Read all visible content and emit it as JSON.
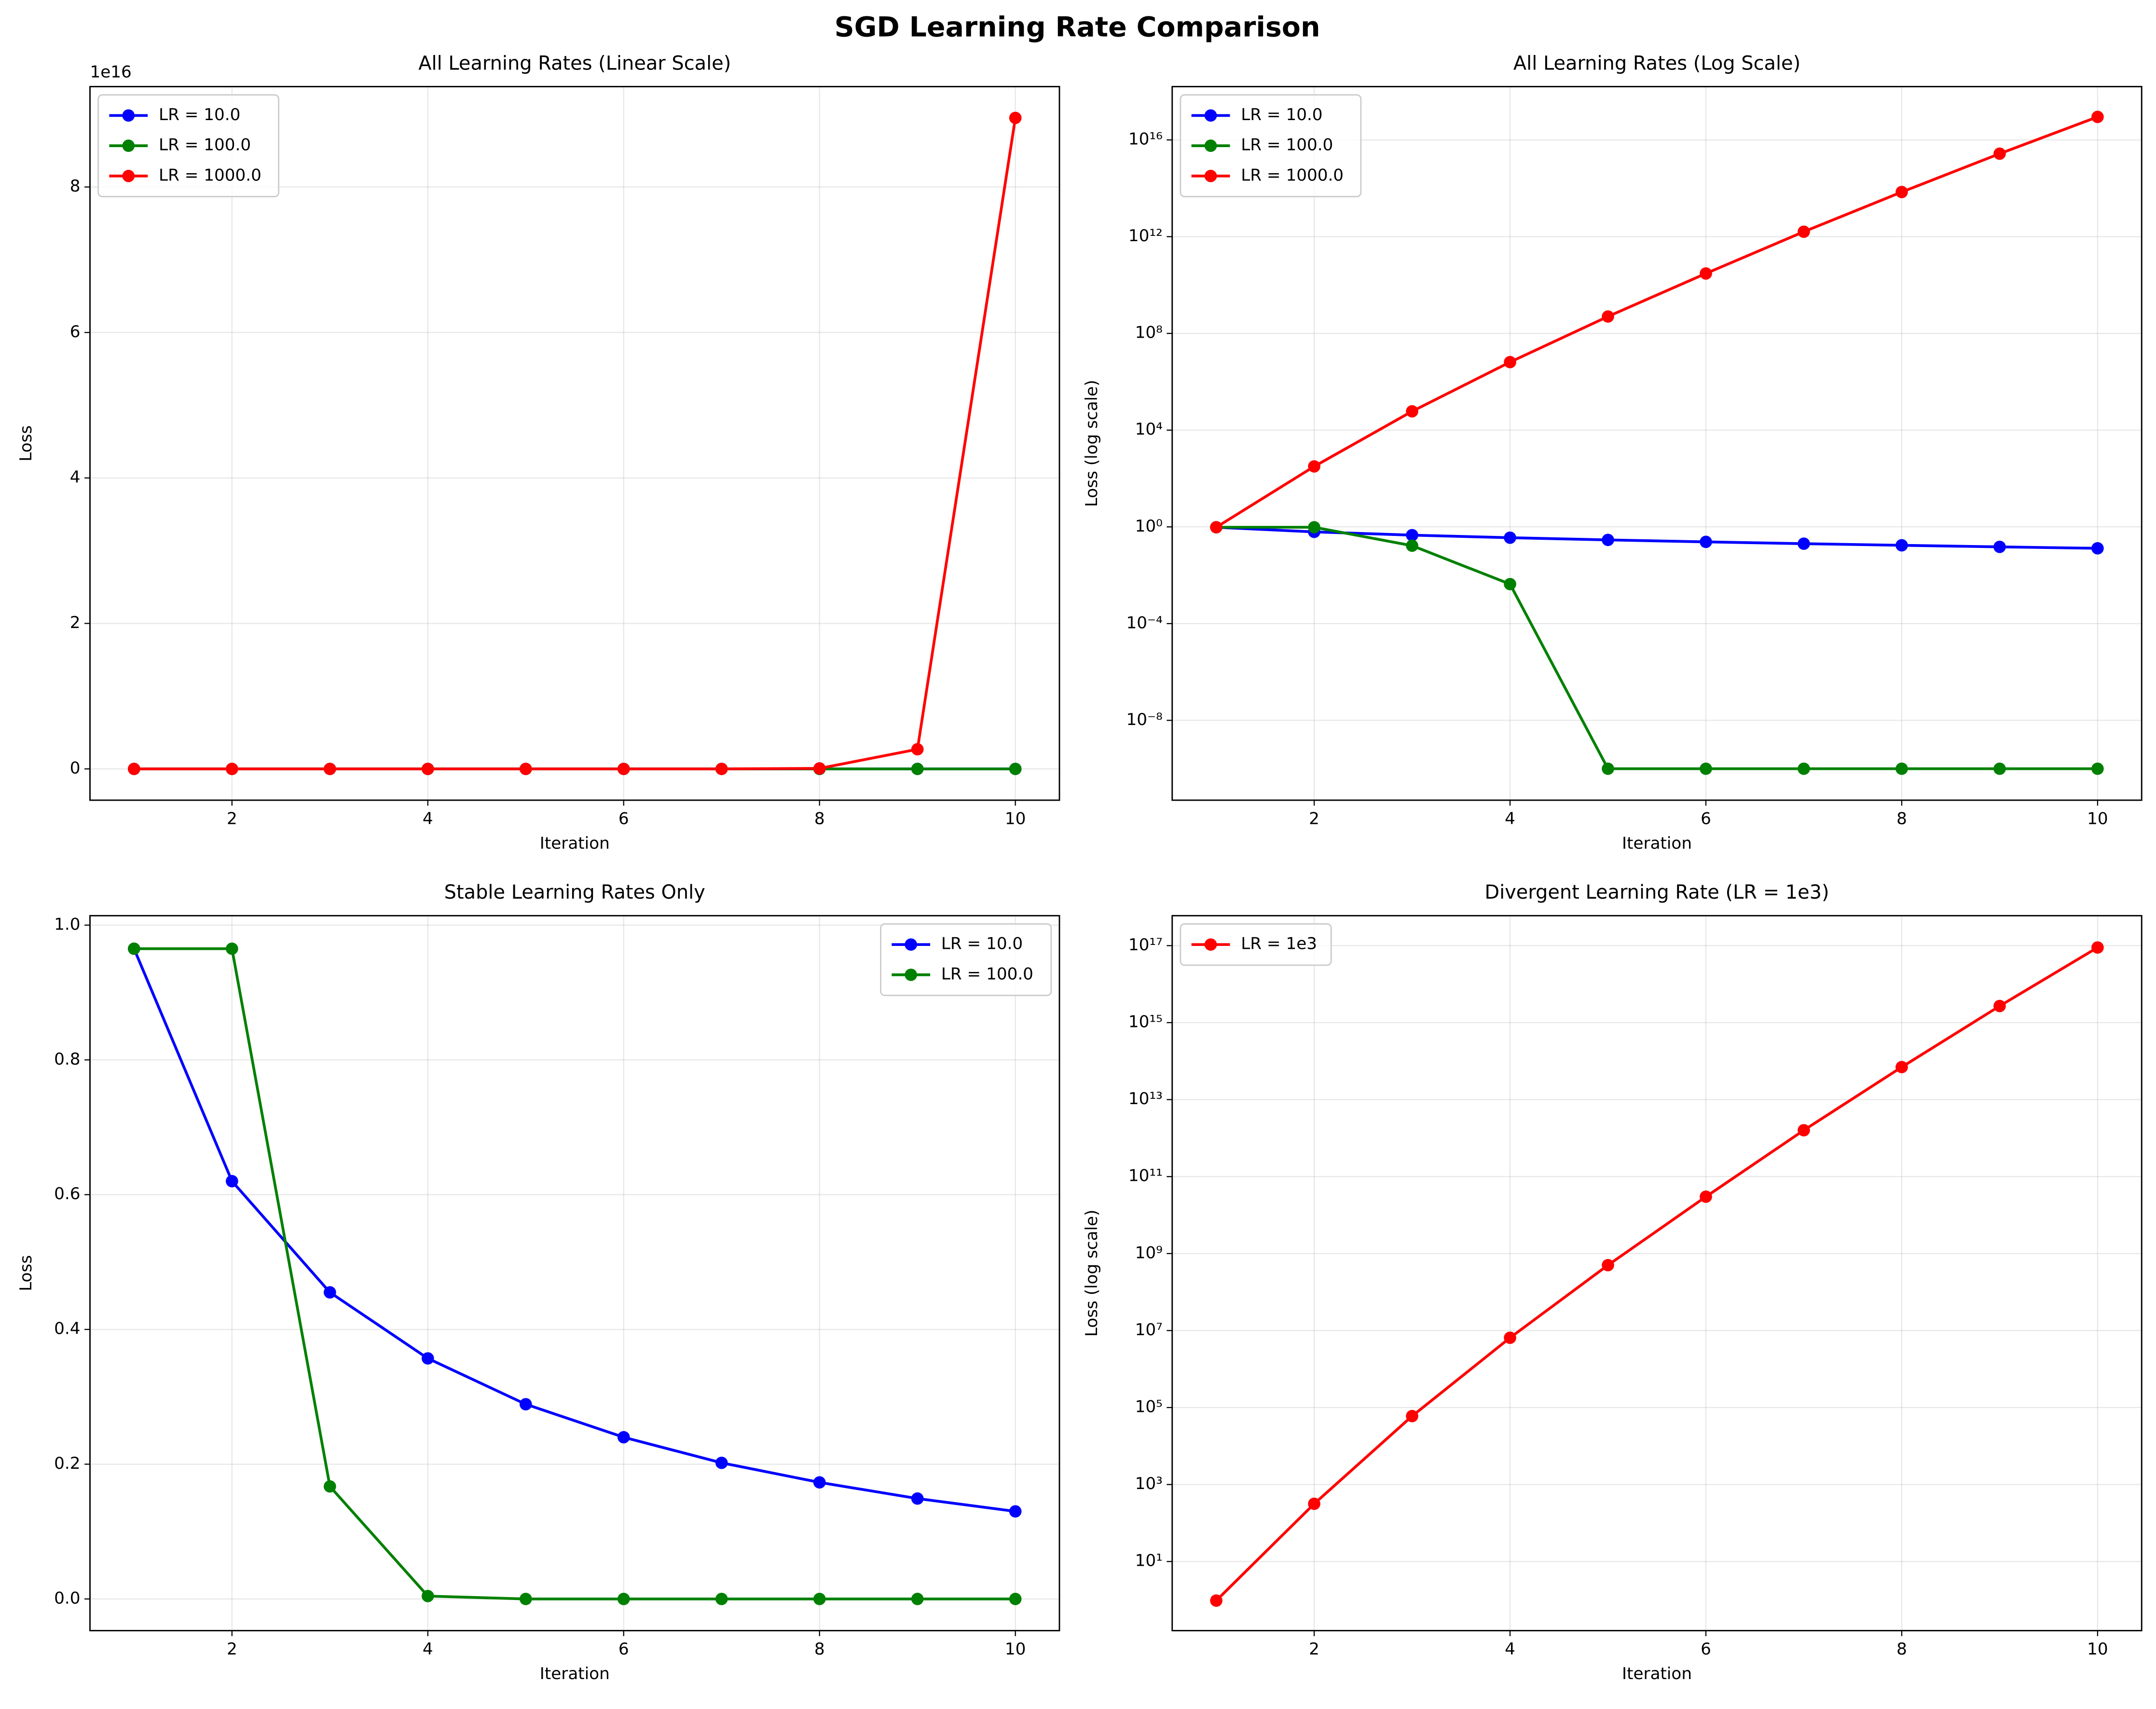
{
  "title": "SGD Learning Rate Comparison",
  "chart_data": [
    {
      "type": "line",
      "title": "All Learning Rates (Linear Scale)",
      "xlabel": "Iteration",
      "ylabel": "Loss",
      "y_offset_label": "1e16",
      "grid": true,
      "legend": "upper left",
      "x": [
        1,
        2,
        3,
        4,
        5,
        6,
        7,
        8,
        9,
        10
      ],
      "xlim": [
        0.55,
        10.45
      ],
      "xticks": [
        2,
        4,
        6,
        8,
        10
      ],
      "ylim": [
        -4300000000000000.0,
        9.38e+16
      ],
      "yticks": [
        {
          "value": 0,
          "label": "0"
        },
        {
          "value": 2e+16,
          "label": "2"
        },
        {
          "value": 4e+16,
          "label": "4"
        },
        {
          "value": 6e+16,
          "label": "6"
        },
        {
          "value": 8e+16,
          "label": "8"
        }
      ],
      "series": [
        {
          "name": "LR = 10.0",
          "color": "#0000ff",
          "values": [
            0.965,
            0.62,
            0.455,
            0.357,
            0.289,
            0.24,
            0.202,
            0.173,
            0.149,
            0.13
          ]
        },
        {
          "name": "LR = 100.0",
          "color": "#008000",
          "values": [
            0.965,
            0.965,
            0.167,
            0.0043,
            1e-10,
            1e-10,
            1e-10,
            1e-10,
            1e-10,
            1e-10
          ]
        },
        {
          "name": "LR = 1000.0",
          "color": "#ff0000",
          "values": [
            0.965,
            316,
            60000,
            6500000,
            500000000,
            30000000000,
            1600000000000,
            70000000000000,
            2700000000000000,
            89500000000000000
          ]
        }
      ]
    },
    {
      "type": "line",
      "title": "All Learning Rates (Log Scale)",
      "xlabel": "Iteration",
      "ylabel": "Loss (log scale)",
      "yscale": "log",
      "grid": true,
      "legend": "upper left",
      "x": [
        1,
        2,
        3,
        4,
        5,
        6,
        7,
        8,
        9,
        10
      ],
      "xlim": [
        0.55,
        10.45
      ],
      "xticks": [
        2,
        4,
        6,
        8,
        10
      ],
      "ylim": [
        5e-12,
        1.6e+18
      ],
      "yticks": [
        {
          "value": 1e-08,
          "label": "10⁻⁸"
        },
        {
          "value": 0.0001,
          "label": "10⁻⁴"
        },
        {
          "value": 1,
          "label": "10⁰"
        },
        {
          "value": 10000,
          "label": "10⁴"
        },
        {
          "value": 100000000,
          "label": "10⁸"
        },
        {
          "value": 1000000000000,
          "label": "10¹²"
        },
        {
          "value": 10000000000000000,
          "label": "10¹⁶"
        }
      ],
      "series": [
        {
          "name": "LR = 10.0",
          "color": "#0000ff",
          "values": [
            0.965,
            0.62,
            0.455,
            0.357,
            0.289,
            0.24,
            0.202,
            0.173,
            0.149,
            0.13
          ]
        },
        {
          "name": "LR = 100.0",
          "color": "#008000",
          "values": [
            0.965,
            0.965,
            0.167,
            0.0043,
            1e-10,
            1e-10,
            1e-10,
            1e-10,
            1e-10,
            1e-10
          ]
        },
        {
          "name": "LR = 1000.0",
          "color": "#ff0000",
          "values": [
            0.965,
            316,
            60000,
            6500000,
            500000000,
            30000000000,
            1600000000000,
            70000000000000,
            2700000000000000,
            89500000000000000
          ]
        }
      ]
    },
    {
      "type": "line",
      "title": "Stable Learning Rates Only",
      "xlabel": "Iteration",
      "ylabel": "Loss",
      "grid": true,
      "legend": "upper right",
      "x": [
        1,
        2,
        3,
        4,
        5,
        6,
        7,
        8,
        9,
        10
      ],
      "xlim": [
        0.55,
        10.45
      ],
      "xticks": [
        2,
        4,
        6,
        8,
        10
      ],
      "ylim": [
        -0.047,
        1.014
      ],
      "yticks": [
        {
          "value": 0,
          "label": "0.0"
        },
        0.2,
        0.4,
        0.6,
        0.8,
        {
          "value": 1,
          "label": "1.0"
        }
      ],
      "series": [
        {
          "name": "LR = 10.0",
          "color": "#0000ff",
          "values": [
            0.965,
            0.62,
            0.455,
            0.357,
            0.289,
            0.24,
            0.202,
            0.173,
            0.149,
            0.13
          ]
        },
        {
          "name": "LR = 100.0",
          "color": "#008000",
          "values": [
            0.965,
            0.965,
            0.167,
            0.0043,
            1e-10,
            1e-10,
            1e-10,
            1e-10,
            1e-10,
            1e-10
          ]
        }
      ]
    },
    {
      "type": "line",
      "title": "Divergent Learning Rate (LR = 1e3)",
      "xlabel": "Iteration",
      "ylabel": "Loss (log scale)",
      "yscale": "log",
      "grid": true,
      "legend": "upper left",
      "x": [
        1,
        2,
        3,
        4,
        5,
        6,
        7,
        8,
        9,
        10
      ],
      "xlim": [
        0.55,
        10.45
      ],
      "xticks": [
        2,
        4,
        6,
        8,
        10
      ],
      "ylim": [
        0.16,
        6e+17
      ],
      "yticks": [
        {
          "value": 10,
          "label": "10¹"
        },
        {
          "value": 1000,
          "label": "10³"
        },
        {
          "value": 100000,
          "label": "10⁵"
        },
        {
          "value": 10000000,
          "label": "10⁷"
        },
        {
          "value": 1000000000,
          "label": "10⁹"
        },
        {
          "value": 100000000000,
          "label": "10¹¹"
        },
        {
          "value": 10000000000000,
          "label": "10¹³"
        },
        {
          "value": 1000000000000000,
          "label": "10¹⁵"
        },
        {
          "value": 100000000000000000,
          "label": "10¹⁷"
        }
      ],
      "series": [
        {
          "name": "LR = 1e3",
          "color": "#ff0000",
          "values": [
            0.965,
            316,
            60000,
            6500000,
            500000000,
            30000000000,
            1600000000000,
            70000000000000,
            2700000000000000,
            89500000000000000
          ]
        }
      ]
    }
  ]
}
